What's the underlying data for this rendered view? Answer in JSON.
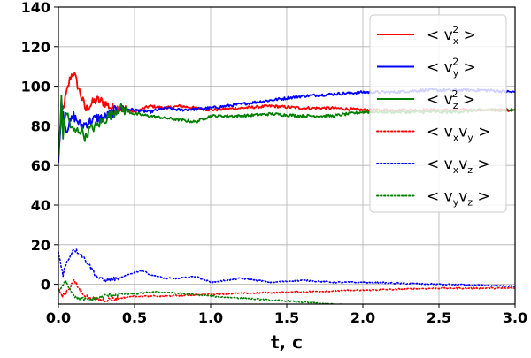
{
  "chart_data": {
    "type": "line",
    "xlabel": "t, c",
    "ylabel": "",
    "xlim": [
      0,
      3.0
    ],
    "ylim": [
      -10,
      140
    ],
    "xticks": [
      0.0,
      0.5,
      1.0,
      1.5,
      2.0,
      2.5,
      3.0
    ],
    "xtick_labels": [
      "0.0",
      "0.5",
      "1.0",
      "1.5",
      "2.0",
      "2.5",
      "3.0"
    ],
    "yticks": [
      0,
      20,
      40,
      60,
      80,
      100,
      120,
      140
    ],
    "ytick_labels": [
      "0",
      "20",
      "40",
      "60",
      "80",
      "100",
      "120",
      "140"
    ],
    "grid": true,
    "legend_position": "upper-right",
    "series": [
      {
        "name": "<vx²>",
        "legend_base": "< v",
        "legend_sub": "x",
        "legend_sup": "2",
        "legend_tail": " >",
        "color": "#ff0000",
        "style": "solid",
        "x": [
          0.0,
          0.02,
          0.05,
          0.08,
          0.1,
          0.12,
          0.15,
          0.18,
          0.2,
          0.25,
          0.3,
          0.35,
          0.4,
          0.5,
          0.6,
          0.7,
          0.8,
          1.0,
          1.2,
          1.4,
          1.6,
          1.8,
          2.0,
          2.2,
          2.4,
          2.6,
          2.8,
          3.0
        ],
        "y": [
          65,
          85,
          95,
          105,
          107,
          102,
          95,
          88,
          90,
          93,
          92,
          89,
          89,
          87,
          90,
          89,
          90,
          88,
          89,
          90,
          89,
          89,
          88,
          88,
          88,
          88,
          88,
          88
        ]
      },
      {
        "name": "<vy²>",
        "legend_base": "< v",
        "legend_sub": "y",
        "legend_sup": "2",
        "legend_tail": " >",
        "color": "#0000ff",
        "style": "solid",
        "x": [
          0.0,
          0.02,
          0.05,
          0.08,
          0.1,
          0.15,
          0.2,
          0.25,
          0.3,
          0.4,
          0.5,
          0.6,
          0.7,
          0.8,
          1.0,
          1.2,
          1.4,
          1.6,
          1.8,
          2.0,
          2.2,
          2.4,
          2.6,
          2.8,
          3.0
        ],
        "y": [
          60,
          92,
          78,
          82,
          85,
          80,
          82,
          84,
          84,
          89,
          88,
          87,
          89,
          88,
          89,
          91,
          93,
          95,
          96,
          97,
          97,
          98,
          98,
          98,
          97
        ]
      },
      {
        "name": "<vz²>",
        "legend_base": "< v",
        "legend_sub": "z",
        "legend_sup": "2",
        "legend_tail": " >",
        "color": "#008000",
        "style": "solid",
        "x": [
          0.0,
          0.02,
          0.03,
          0.05,
          0.08,
          0.1,
          0.15,
          0.18,
          0.2,
          0.25,
          0.3,
          0.35,
          0.4,
          0.5,
          0.6,
          0.7,
          0.8,
          0.9,
          1.0,
          1.2,
          1.4,
          1.6,
          1.8,
          2.0,
          2.2,
          2.4,
          2.6,
          2.8,
          3.0
        ],
        "y": [
          65,
          93,
          75,
          88,
          80,
          77,
          78,
          74,
          78,
          80,
          83,
          86,
          89,
          86,
          85,
          84,
          83,
          82,
          85,
          85,
          86,
          85,
          85,
          87,
          87,
          87,
          87,
          88,
          88
        ]
      },
      {
        "name": "<vxvy>",
        "legend_base": "< v",
        "legend_sub": "x",
        "legend_base2": "v",
        "legend_sub2": "y",
        "legend_tail": " >",
        "color": "#ff0000",
        "style": "dotted",
        "x": [
          0.0,
          0.02,
          0.05,
          0.08,
          0.1,
          0.15,
          0.2,
          0.3,
          0.4,
          0.5,
          0.7,
          1.0,
          1.5,
          2.0,
          2.5,
          3.0
        ],
        "y": [
          -2,
          -6,
          -4,
          -1,
          2,
          -4,
          -7,
          -8,
          -7,
          -6,
          -6,
          -5,
          -4,
          -3,
          -2,
          -2
        ]
      },
      {
        "name": "<vxvz>",
        "legend_base": "< v",
        "legend_sub": "x",
        "legend_base2": "v",
        "legend_sub2": "z",
        "legend_tail": " >",
        "color": "#0000ff",
        "style": "dotted",
        "x": [
          0.0,
          0.03,
          0.05,
          0.08,
          0.1,
          0.15,
          0.2,
          0.25,
          0.3,
          0.4,
          0.5,
          0.55,
          0.6,
          0.7,
          0.8,
          0.9,
          1.0,
          1.2,
          1.4,
          1.6,
          1.8,
          2.0,
          2.5,
          3.0
        ],
        "y": [
          16,
          5,
          10,
          15,
          18,
          15,
          10,
          4,
          2,
          3,
          6,
          7,
          5,
          3,
          3,
          4,
          1,
          3,
          1,
          2,
          1,
          1,
          0,
          -1
        ]
      },
      {
        "name": "<vyvz>",
        "legend_base": "< v",
        "legend_sub": "y",
        "legend_base2": "v",
        "legend_sub2": "z",
        "legend_tail": " >",
        "color": "#008000",
        "style": "dotted",
        "x": [
          0.0,
          0.02,
          0.05,
          0.08,
          0.12,
          0.2,
          0.3,
          0.4,
          0.5,
          0.6,
          0.7,
          1.0,
          1.2,
          1.4,
          1.6,
          1.8,
          2.0,
          2.5,
          3.0
        ],
        "y": [
          -4,
          -2,
          2,
          -3,
          -7,
          -8,
          -6,
          -5,
          -5,
          -4,
          -4,
          -6,
          -7,
          -8,
          -9,
          -10,
          -11,
          -11,
          -12
        ]
      }
    ]
  }
}
